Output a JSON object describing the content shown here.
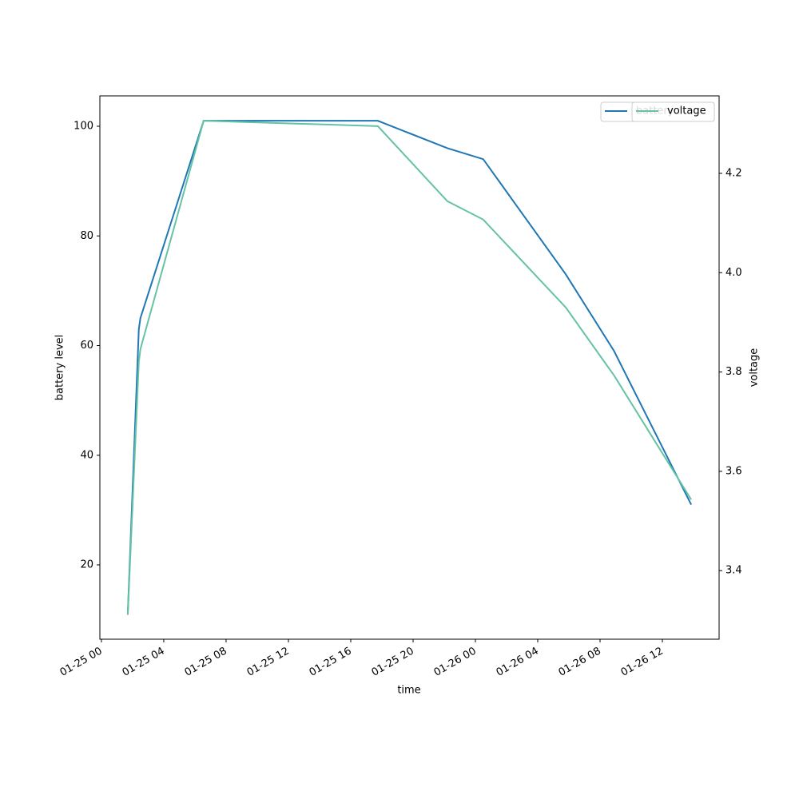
{
  "chart_data": {
    "type": "line",
    "xlabel": "time",
    "ylabel": "battery level",
    "y2label": "voltage",
    "x": [
      1.69,
      2.4,
      2.5,
      6.56,
      17.74,
      22.2,
      24.5,
      29.8,
      32.9,
      37.85
    ],
    "series": [
      {
        "name": "battery",
        "color": "#1f77b4",
        "values": [
          11,
          63,
          65,
          101,
          101,
          96,
          94,
          73,
          59,
          31
        ]
      },
      {
        "name": "voltage",
        "color": "#66c2a5",
        "axis": "y2",
        "values": [
          3.311,
          3.82,
          3.846,
          4.306,
          4.295,
          4.144,
          4.107,
          3.93,
          3.793,
          3.543
        ]
      }
    ],
    "xlim": [
      -0.1,
      39.64
    ],
    "xticks": [
      {
        "value": 0,
        "label": "01-25 00"
      },
      {
        "value": 4,
        "label": "01-25 04"
      },
      {
        "value": 8,
        "label": "01-25 08"
      },
      {
        "value": 12,
        "label": "01-25 12"
      },
      {
        "value": 16,
        "label": "01-25 16"
      },
      {
        "value": 20,
        "label": "01-25 20"
      },
      {
        "value": 24,
        "label": "01-26 00"
      },
      {
        "value": 28,
        "label": "01-26 04"
      },
      {
        "value": 32,
        "label": "01-26 08"
      },
      {
        "value": 36,
        "label": "01-26 12"
      }
    ],
    "ylim": [
      6.45,
      105.54
    ],
    "yticks": [
      20,
      40,
      60,
      80,
      100
    ],
    "y2lim": [
      3.262,
      4.356
    ],
    "y2ticks": [
      3.4,
      3.6,
      3.8,
      {
        "value": 4,
        "label": "4.0"
      },
      4.2
    ],
    "legend": "upper right"
  }
}
